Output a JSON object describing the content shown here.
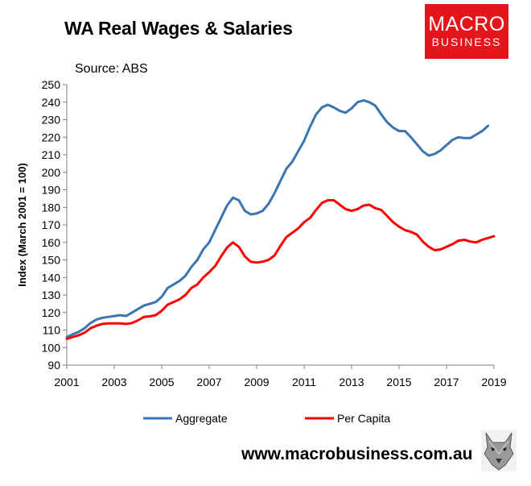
{
  "header": {
    "title": "WA Real Wages & Salaries",
    "source": "Source: ABS"
  },
  "logo": {
    "line1": "MACRO",
    "line2": "BUSINESS",
    "color": "#e3161c"
  },
  "footer": {
    "website": "www.macrobusiness.com.au",
    "mascot": "wolf-icon"
  },
  "chart_data": {
    "type": "line",
    "title": "WA Real Wages & Salaries",
    "ylabel": "Index (March 2001 = 100)",
    "xlabel": "",
    "xlim": [
      2001,
      2019
    ],
    "ylim": [
      90,
      250
    ],
    "yticks": [
      90,
      100,
      110,
      120,
      130,
      140,
      150,
      160,
      170,
      180,
      190,
      200,
      210,
      220,
      230,
      240,
      250
    ],
    "xticks": [
      2001,
      2003,
      2005,
      2007,
      2009,
      2011,
      2013,
      2015,
      2017,
      2019
    ],
    "grid": false,
    "legend": "bottom",
    "series": [
      {
        "name": "Aggregate",
        "color": "#3a75b0",
        "points": [
          [
            2001.0,
            106
          ],
          [
            2001.25,
            107.5
          ],
          [
            2001.5,
            109
          ],
          [
            2001.75,
            111
          ],
          [
            2002.0,
            114
          ],
          [
            2002.25,
            116
          ],
          [
            2002.5,
            117
          ],
          [
            2002.75,
            117.5
          ],
          [
            2003.0,
            118
          ],
          [
            2003.25,
            118.5
          ],
          [
            2003.5,
            118
          ],
          [
            2003.75,
            120
          ],
          [
            2004.0,
            122
          ],
          [
            2004.25,
            124
          ],
          [
            2004.5,
            125
          ],
          [
            2004.75,
            126
          ],
          [
            2005.0,
            129
          ],
          [
            2005.25,
            134
          ],
          [
            2005.5,
            136
          ],
          [
            2005.75,
            138
          ],
          [
            2006.0,
            141
          ],
          [
            2006.25,
            146
          ],
          [
            2006.5,
            150
          ],
          [
            2006.75,
            156
          ],
          [
            2007.0,
            160
          ],
          [
            2007.25,
            167
          ],
          [
            2007.5,
            174
          ],
          [
            2007.75,
            181
          ],
          [
            2008.0,
            185.5
          ],
          [
            2008.25,
            184
          ],
          [
            2008.5,
            178
          ],
          [
            2008.75,
            176
          ],
          [
            2009.0,
            176.5
          ],
          [
            2009.25,
            178
          ],
          [
            2009.5,
            182
          ],
          [
            2009.75,
            188
          ],
          [
            2010.0,
            195
          ],
          [
            2010.25,
            202
          ],
          [
            2010.5,
            206
          ],
          [
            2010.75,
            212
          ],
          [
            2011.0,
            218
          ],
          [
            2011.25,
            226
          ],
          [
            2011.5,
            233
          ],
          [
            2011.75,
            237
          ],
          [
            2012.0,
            238.5
          ],
          [
            2012.25,
            237
          ],
          [
            2012.5,
            235
          ],
          [
            2012.75,
            234
          ],
          [
            2013.0,
            236.5
          ],
          [
            2013.25,
            240
          ],
          [
            2013.5,
            241
          ],
          [
            2013.75,
            240
          ],
          [
            2014.0,
            238
          ],
          [
            2014.25,
            233
          ],
          [
            2014.5,
            228.5
          ],
          [
            2014.75,
            225.5
          ],
          [
            2015.0,
            223.5
          ],
          [
            2015.25,
            223.5
          ],
          [
            2015.5,
            220
          ],
          [
            2015.75,
            216
          ],
          [
            2016.0,
            212
          ],
          [
            2016.25,
            209.5
          ],
          [
            2016.5,
            210.5
          ],
          [
            2016.75,
            212.5
          ],
          [
            2017.0,
            215.5
          ],
          [
            2017.25,
            218.5
          ],
          [
            2017.5,
            220
          ],
          [
            2017.75,
            219.5
          ],
          [
            2018.0,
            219.5
          ],
          [
            2018.25,
            221.5
          ],
          [
            2018.5,
            223.5
          ],
          [
            2018.75,
            226.5
          ]
        ]
      },
      {
        "name": "Per Capita",
        "color": "#ff0000",
        "points": [
          [
            2001.0,
            105
          ],
          [
            2001.25,
            106
          ],
          [
            2001.5,
            107
          ],
          [
            2001.75,
            108.5
          ],
          [
            2002.0,
            111
          ],
          [
            2002.25,
            112.5
          ],
          [
            2002.5,
            113.5
          ],
          [
            2002.75,
            113.8
          ],
          [
            2003.0,
            113.8
          ],
          [
            2003.25,
            113.8
          ],
          [
            2003.5,
            113.5
          ],
          [
            2003.75,
            114
          ],
          [
            2004.0,
            115.5
          ],
          [
            2004.25,
            117.5
          ],
          [
            2004.5,
            117.8
          ],
          [
            2004.75,
            118.5
          ],
          [
            2005.0,
            121
          ],
          [
            2005.25,
            124.5
          ],
          [
            2005.5,
            126
          ],
          [
            2005.75,
            127.5
          ],
          [
            2006.0,
            130
          ],
          [
            2006.25,
            134
          ],
          [
            2006.5,
            136
          ],
          [
            2006.75,
            140
          ],
          [
            2007.0,
            143
          ],
          [
            2007.25,
            146.5
          ],
          [
            2007.5,
            152
          ],
          [
            2007.75,
            157
          ],
          [
            2008.0,
            160
          ],
          [
            2008.25,
            157.5
          ],
          [
            2008.5,
            152
          ],
          [
            2008.75,
            149
          ],
          [
            2009.0,
            148.5
          ],
          [
            2009.25,
            149
          ],
          [
            2009.5,
            150
          ],
          [
            2009.75,
            152.5
          ],
          [
            2010.0,
            158
          ],
          [
            2010.25,
            163
          ],
          [
            2010.5,
            165.5
          ],
          [
            2010.75,
            168
          ],
          [
            2011.0,
            171.5
          ],
          [
            2011.25,
            174
          ],
          [
            2011.5,
            178.5
          ],
          [
            2011.75,
            182.5
          ],
          [
            2012.0,
            184
          ],
          [
            2012.25,
            184
          ],
          [
            2012.5,
            181.5
          ],
          [
            2012.75,
            179
          ],
          [
            2013.0,
            178
          ],
          [
            2013.25,
            179
          ],
          [
            2013.5,
            181
          ],
          [
            2013.75,
            181.5
          ],
          [
            2014.0,
            179.5
          ],
          [
            2014.25,
            178.5
          ],
          [
            2014.5,
            175
          ],
          [
            2014.75,
            171.5
          ],
          [
            2015.0,
            169
          ],
          [
            2015.25,
            167
          ],
          [
            2015.5,
            166
          ],
          [
            2015.75,
            164.5
          ],
          [
            2016.0,
            160.5
          ],
          [
            2016.25,
            157.5
          ],
          [
            2016.5,
            155.5
          ],
          [
            2016.75,
            156
          ],
          [
            2017.0,
            157.5
          ],
          [
            2017.25,
            159
          ],
          [
            2017.5,
            161
          ],
          [
            2017.75,
            161.5
          ],
          [
            2018.0,
            160.5
          ],
          [
            2018.25,
            160
          ],
          [
            2018.5,
            161.5
          ],
          [
            2018.75,
            162.5
          ],
          [
            2019.0,
            163.5
          ]
        ]
      }
    ]
  }
}
